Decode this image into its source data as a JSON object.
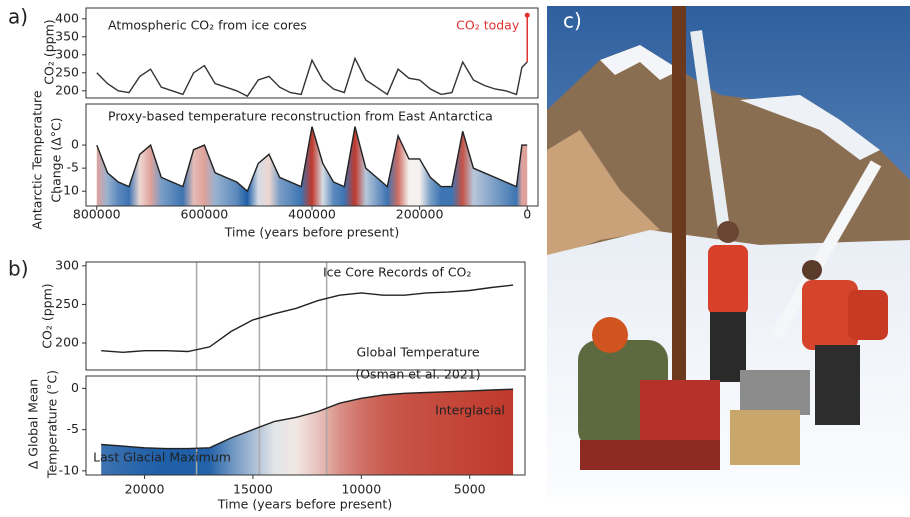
{
  "panel_labels": [
    "a)",
    "b)",
    "c)"
  ],
  "chart_data": [
    {
      "type": "line",
      "title": "Atmospheric CO₂ from ice cores",
      "ylabel": [
        "CO₂ (ppm)"
      ],
      "x": [
        800000,
        780000,
        760000,
        740000,
        720000,
        700000,
        680000,
        660000,
        640000,
        620000,
        600000,
        580000,
        560000,
        540000,
        520000,
        500000,
        480000,
        460000,
        440000,
        420000,
        400000,
        380000,
        360000,
        340000,
        320000,
        300000,
        280000,
        260000,
        240000,
        220000,
        200000,
        180000,
        160000,
        140000,
        120000,
        100000,
        80000,
        60000,
        40000,
        20000,
        10000,
        0
      ],
      "values": [
        250,
        220,
        200,
        195,
        240,
        260,
        210,
        200,
        190,
        250,
        270,
        220,
        210,
        200,
        185,
        230,
        240,
        210,
        195,
        190,
        285,
        230,
        205,
        195,
        290,
        230,
        210,
        190,
        260,
        235,
        230,
        205,
        190,
        195,
        280,
        230,
        215,
        205,
        200,
        190,
        265,
        280
      ],
      "annotations": [
        {
          "text": "CO₂ today",
          "x": 0,
          "y": 410,
          "color": "#e03030"
        }
      ],
      "color": "#333333",
      "xlim": [
        820000,
        -20000
      ],
      "ylim": [
        180,
        430
      ],
      "yticks": [
        200,
        250,
        300,
        350,
        400
      ]
    },
    {
      "type": "area",
      "title": "Proxy-based temperature reconstruction from East Antarctica",
      "ylabel": [
        "Antarctic Temperature",
        "Change (Δ°C)"
      ],
      "xlabel": "Time (years before present)",
      "x": [
        800000,
        780000,
        760000,
        740000,
        720000,
        700000,
        680000,
        660000,
        640000,
        620000,
        600000,
        580000,
        560000,
        540000,
        520000,
        500000,
        480000,
        460000,
        440000,
        420000,
        400000,
        380000,
        360000,
        340000,
        320000,
        300000,
        280000,
        260000,
        240000,
        220000,
        200000,
        180000,
        160000,
        140000,
        120000,
        100000,
        80000,
        60000,
        40000,
        20000,
        10000,
        0
      ],
      "values": [
        0,
        -6,
        -8,
        -9,
        -2,
        0,
        -7,
        -8,
        -9,
        -1,
        0,
        -6,
        -7,
        -8,
        -10,
        -4,
        -2,
        -7,
        -8,
        -9,
        4,
        -4,
        -8,
        -9,
        4,
        -5,
        -7,
        -9,
        2,
        -3,
        -3,
        -7,
        -9,
        -9,
        3,
        -5,
        -6,
        -7,
        -8,
        -9,
        0,
        0
      ],
      "color": "#222222",
      "cmap": [
        "#1f5fa8",
        "#f4f1ee",
        "#c0392b"
      ],
      "xlim": [
        820000,
        -20000
      ],
      "ylim": [
        -13.2,
        8.9
      ],
      "yticks": [
        -10,
        -5,
        0
      ],
      "xticks": [
        800000,
        600000,
        400000,
        200000,
        0
      ]
    },
    {
      "type": "line",
      "ylabel": [
        "CO₂ (ppm)"
      ],
      "annotations": [
        {
          "text": "Ice Core Records of CO₂"
        }
      ],
      "x": [
        22000,
        21000,
        20000,
        19000,
        18000,
        17000,
        16000,
        15000,
        14000,
        13000,
        12000,
        11000,
        10000,
        9000,
        8000,
        7000,
        6000,
        5000,
        4000,
        3000
      ],
      "values": [
        190,
        188,
        190,
        190,
        189,
        195,
        215,
        230,
        238,
        245,
        255,
        262,
        265,
        262,
        262,
        265,
        266,
        268,
        272,
        275
      ],
      "color": "#222222",
      "event_lines": [
        17600,
        14700,
        11600
      ],
      "xlim": [
        22700,
        2450
      ],
      "ylim": [
        165,
        305
      ],
      "yticks": [
        200,
        250,
        300
      ]
    },
    {
      "type": "area",
      "ylabel": [
        "Δ Global Mean",
        "Temperature (°C)"
      ],
      "xlabel": "Time (years before present)",
      "annotations": [
        {
          "text": "Global Temperature"
        },
        {
          "text": "(Osman et al. 2021)"
        },
        {
          "text": "Interglacial"
        },
        {
          "text": "Last Glacial Maximum"
        }
      ],
      "x": [
        22000,
        21000,
        20000,
        19000,
        18000,
        17000,
        16000,
        15000,
        14000,
        13000,
        12000,
        11000,
        10000,
        9000,
        8000,
        7000,
        6000,
        5000,
        4000,
        3000
      ],
      "values": [
        -6.8,
        -7,
        -7.2,
        -7.3,
        -7.3,
        -7.2,
        -6,
        -5,
        -4,
        -3.5,
        -2.8,
        -1.8,
        -1.2,
        -0.8,
        -0.6,
        -0.5,
        -0.4,
        -0.3,
        -0.2,
        -0.1
      ],
      "color": "#222222",
      "cmap": [
        "#1f5fa8",
        "#f4f1ee",
        "#c0392b"
      ],
      "event_lines": [
        17600,
        14700,
        11600
      ],
      "xlim": [
        22700,
        2450
      ],
      "ylim": [
        -10.5,
        1.5
      ],
      "yticks": [
        -10,
        -5,
        0
      ],
      "xticks": [
        20000,
        15000,
        10000,
        5000
      ]
    }
  ]
}
